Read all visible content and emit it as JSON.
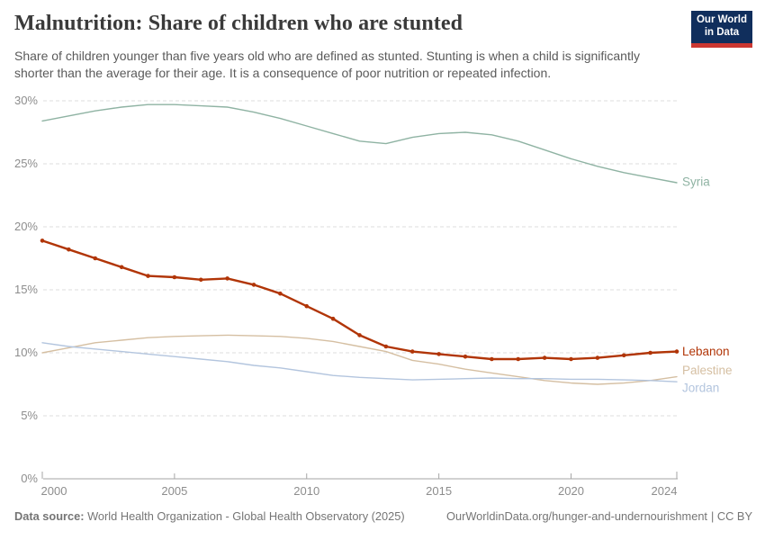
{
  "header": {
    "title": "Malnutrition: Share of children who are stunted",
    "subtitle": "Share of children younger than five years old who are defined as stunted. Stunting is when a child is significantly\nshorter than the average for their age. It is a consequence of poor nutrition or repeated infection.",
    "logo": {
      "line1": "Our World",
      "line2": "in Data"
    }
  },
  "chart_data": {
    "type": "line",
    "title": "Malnutrition: Share of children who are stunted",
    "x": [
      2000,
      2001,
      2002,
      2003,
      2004,
      2005,
      2006,
      2007,
      2008,
      2009,
      2010,
      2011,
      2012,
      2013,
      2014,
      2015,
      2016,
      2017,
      2018,
      2019,
      2020,
      2021,
      2022,
      2023,
      2024
    ],
    "series": [
      {
        "name": "Syria",
        "color": "#8FB3A3",
        "line_width": 1.4,
        "markers": false,
        "label_offset": -1,
        "values": [
          28.4,
          28.8,
          29.2,
          29.5,
          29.7,
          29.7,
          29.6,
          29.5,
          29.1,
          28.6,
          28.0,
          27.4,
          26.8,
          26.6,
          27.1,
          27.4,
          27.5,
          27.3,
          26.8,
          26.1,
          25.4,
          24.8,
          24.3,
          23.9,
          23.5
        ]
      },
      {
        "name": "Lebanon",
        "color": "#B13507",
        "line_width": 2.4,
        "markers": true,
        "label_offset": 0,
        "values": [
          18.9,
          18.2,
          17.5,
          16.8,
          16.1,
          16.0,
          15.8,
          15.9,
          15.4,
          14.7,
          13.7,
          12.7,
          11.4,
          10.5,
          10.1,
          9.9,
          9.7,
          9.5,
          9.5,
          9.6,
          9.5,
          9.6,
          9.8,
          10.0,
          10.1
        ]
      },
      {
        "name": "Palestine",
        "color": "#D5BFA2",
        "line_width": 1.4,
        "markers": false,
        "label_offset": -7,
        "values": [
          10.0,
          10.4,
          10.8,
          11.0,
          11.2,
          11.3,
          11.35,
          11.4,
          11.35,
          11.3,
          11.15,
          10.9,
          10.5,
          10.1,
          9.4,
          9.1,
          8.7,
          8.4,
          8.1,
          7.8,
          7.6,
          7.5,
          7.6,
          7.8,
          8.1
        ]
      },
      {
        "name": "Jordan",
        "color": "#B3C5DE",
        "line_width": 1.4,
        "markers": false,
        "label_offset": 7,
        "values": [
          10.8,
          10.5,
          10.3,
          10.1,
          9.9,
          9.7,
          9.5,
          9.3,
          9.0,
          8.8,
          8.5,
          8.2,
          8.05,
          7.95,
          7.85,
          7.9,
          7.95,
          8.0,
          7.95,
          7.95,
          7.9,
          7.9,
          7.85,
          7.8,
          7.7
        ]
      }
    ],
    "ylim": [
      0,
      30
    ],
    "yticks": [
      {
        "v": 0,
        "label": "0%"
      },
      {
        "v": 5,
        "label": "5%"
      },
      {
        "v": 10,
        "label": "10%"
      },
      {
        "v": 15,
        "label": "15%"
      },
      {
        "v": 20,
        "label": "20%"
      },
      {
        "v": 25,
        "label": "25%"
      },
      {
        "v": 30,
        "label": "30%"
      }
    ],
    "xticks": [
      {
        "v": 2000,
        "label": "2000"
      },
      {
        "v": 2005,
        "label": "2005"
      },
      {
        "v": 2010,
        "label": "2010"
      },
      {
        "v": 2015,
        "label": "2015"
      },
      {
        "v": 2020,
        "label": "2020"
      },
      {
        "v": 2024,
        "label": "2024"
      }
    ],
    "grid": "horizontal-dashed",
    "legend_position": "end-of-line-labels",
    "colors": {
      "grid": "#DCDCDC",
      "axis": "#A6A6A6",
      "tick_text": "#8D8D8D"
    }
  },
  "footer": {
    "datasource_label": "Data source:",
    "datasource_text": " World Health Organization - Global Health Observatory (2025)",
    "link": "OurWorldinData.org/hunger-and-undernourishment",
    "license": "| CC BY"
  }
}
